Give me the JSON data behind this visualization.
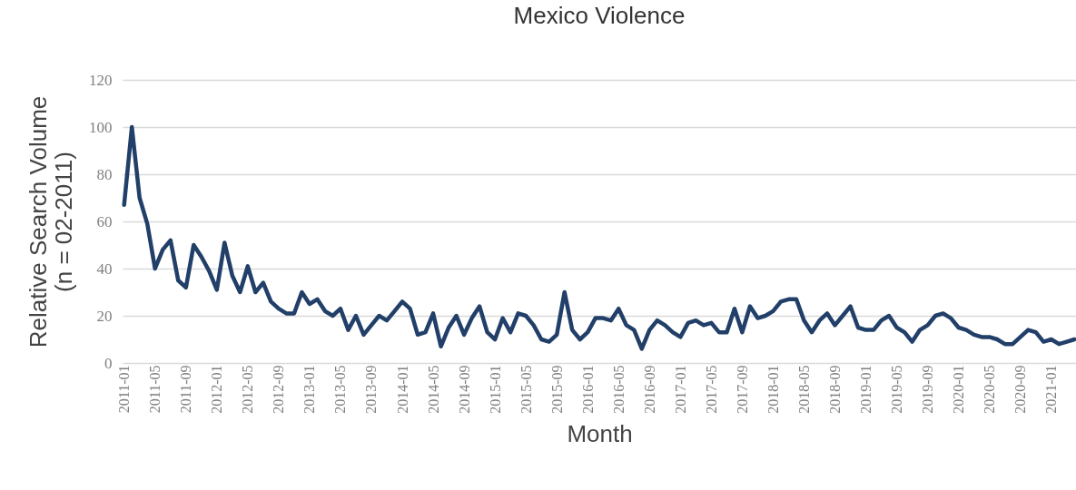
{
  "chart_data": {
    "type": "line",
    "title": "Mexico Violence",
    "xlabel": "Month",
    "ylabel": "Relative Search Volume\n(n = 02-2011)",
    "categories": [
      "2011-01",
      null,
      null,
      null,
      "2011-05",
      null,
      null,
      null,
      "2011-09",
      null,
      null,
      null,
      "2012-01",
      null,
      null,
      null,
      "2012-05",
      null,
      null,
      null,
      "2012-09",
      null,
      null,
      null,
      "2013-01",
      null,
      null,
      null,
      "2013-05",
      null,
      null,
      null,
      "2013-09",
      null,
      null,
      null,
      "2014-01",
      null,
      null,
      null,
      "2014-05",
      null,
      null,
      null,
      "2014-09",
      null,
      null,
      null,
      "2015-01",
      null,
      null,
      null,
      "2015-05",
      null,
      null,
      null,
      "2015-09",
      null,
      null,
      null,
      "2016-01",
      null,
      null,
      null,
      "2016-05",
      null,
      null,
      null,
      "2016-09",
      null,
      null,
      null,
      "2017-01",
      null,
      null,
      null,
      "2017-05",
      null,
      null,
      null,
      "2017-09",
      null,
      null,
      null,
      "2018-01",
      null,
      null,
      null,
      "2018-05",
      null,
      null,
      null,
      "2018-09",
      null,
      null,
      null,
      "2019-01",
      null,
      null,
      null,
      "2019-05",
      null,
      null,
      null,
      "2019-09",
      null,
      null,
      null,
      "2020-01",
      null,
      null,
      null,
      "2020-05",
      null,
      null,
      null,
      "2020-09",
      null,
      null,
      null,
      "2021-01",
      null,
      null,
      null
    ],
    "series": [
      {
        "color": "#213f68",
        "values": [
          67,
          100,
          70,
          59,
          40,
          48,
          52,
          35,
          32,
          50,
          45,
          39,
          31,
          51,
          37,
          30,
          41,
          30,
          34,
          26,
          23,
          21,
          21,
          30,
          25,
          27,
          22,
          20,
          23,
          14,
          20,
          12,
          16,
          20,
          18,
          22,
          26,
          23,
          12,
          13,
          21,
          7,
          15,
          20,
          12,
          19,
          24,
          13,
          10,
          19,
          13,
          21,
          20,
          16,
          10,
          9,
          12,
          30,
          14,
          10,
          13,
          19,
          19,
          18,
          23,
          16,
          14,
          6,
          14,
          18,
          16,
          13,
          11,
          17,
          18,
          16,
          17,
          13,
          13,
          23,
          13,
          24,
          19,
          20,
          22,
          26,
          27,
          27,
          18,
          13,
          18,
          21,
          16,
          20,
          24,
          15,
          14,
          14,
          18,
          20,
          15,
          13,
          9,
          14,
          16,
          20,
          21,
          19,
          15,
          14,
          12,
          11,
          11,
          10,
          8,
          8,
          11,
          14,
          13,
          9,
          10,
          8,
          9,
          10
        ]
      }
    ],
    "ylim": [
      0,
      120
    ],
    "yticks": [
      0,
      20,
      40,
      60,
      80,
      100,
      120
    ],
    "grid": "y",
    "marker": "none",
    "line_style": "solid"
  }
}
